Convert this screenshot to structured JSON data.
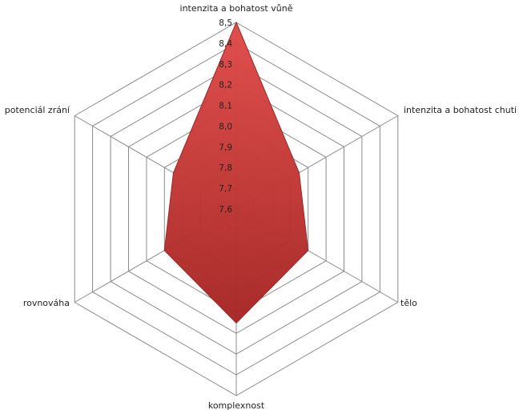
{
  "chart_data": {
    "type": "radar",
    "categories": [
      "intenzita a bohatost vůně",
      "intenzita a bohatost chuti",
      "tělo",
      "komplexnost",
      "rovnováha",
      "potenciál zrání"
    ],
    "series": [
      {
        "values": [
          8.5,
          7.95,
          8.0,
          8.15,
          8.0,
          7.95
        ]
      }
    ],
    "r_range": [
      7.6,
      8.5
    ],
    "ticks": [
      "7,6",
      "7,7",
      "7,8",
      "7,9",
      "8,0",
      "8,1",
      "8,2",
      "8,3",
      "8,4",
      "8,5"
    ],
    "grid": true,
    "legend": "none",
    "colors": {
      "fill_top": "#e04a48",
      "fill_bottom": "#a52523",
      "stroke": "#9c2826",
      "grid": "#8c8c8c"
    }
  }
}
